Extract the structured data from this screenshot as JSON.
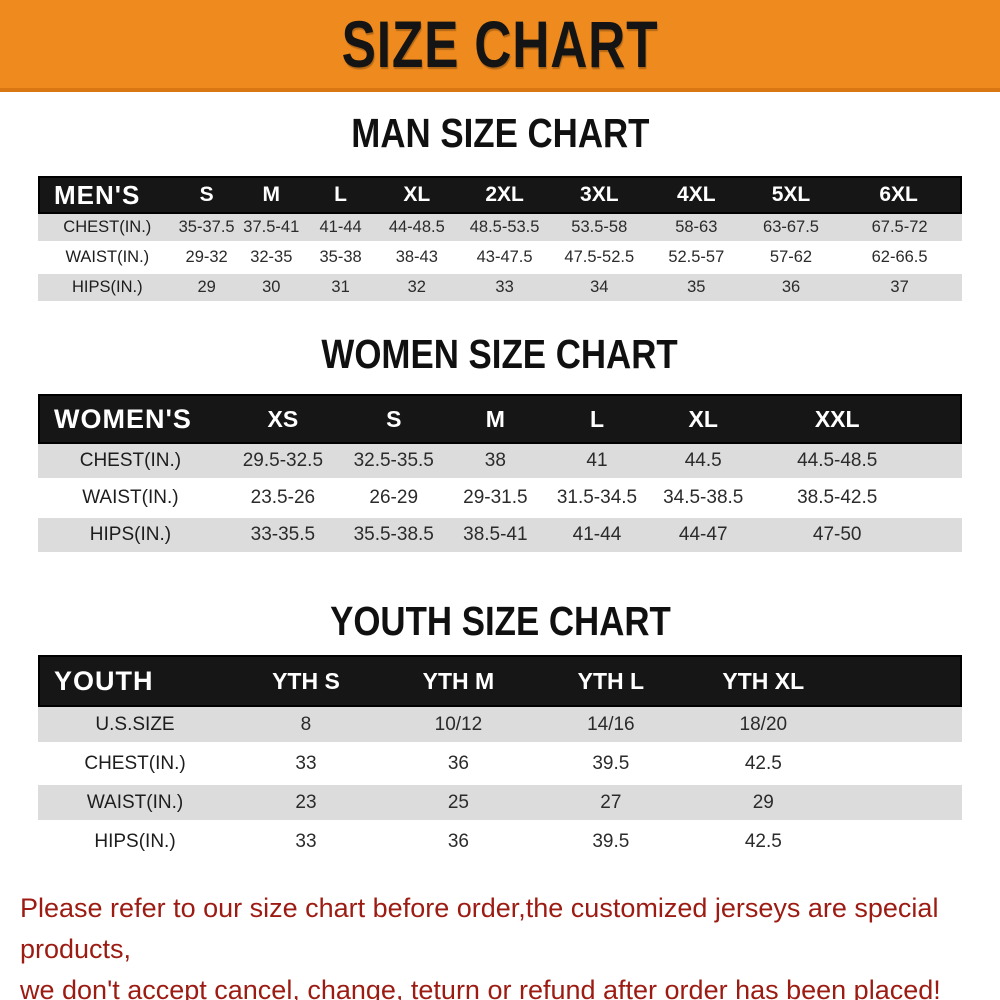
{
  "banner": {
    "title": "SIZE CHART"
  },
  "sections": [
    {
      "heading": "MAN SIZE CHART",
      "table": {
        "header": [
          "MEN'S",
          "S",
          "M",
          "L",
          "XL",
          "2XL",
          "3XL",
          "4XL",
          "5XL",
          "6XL"
        ],
        "rows": [
          {
            "label": "CHEST(IN.)",
            "values": [
              "35-37.5",
              "37.5-41",
              "41-44",
              "44-48.5",
              "48.5-53.5",
              "53.5-58",
              "58-63",
              "63-67.5",
              "67.5-72"
            ]
          },
          {
            "label": "WAIST(IN.)",
            "values": [
              "29-32",
              "32-35",
              "35-38",
              "38-43",
              "43-47.5",
              "47.5-52.5",
              "52.5-57",
              "57-62",
              "62-66.5"
            ]
          },
          {
            "label": "HIPS(IN.)",
            "values": [
              "29",
              "30",
              "31",
              "32",
              "33",
              "34",
              "35",
              "36",
              "37"
            ]
          }
        ]
      }
    },
    {
      "heading": "WOMEN SIZE CHART",
      "table": {
        "header": [
          "WOMEN'S",
          "XS",
          "S",
          "M",
          "L",
          "XL",
          "XXL"
        ],
        "rows": [
          {
            "label": "CHEST(IN.)",
            "values": [
              "29.5-32.5",
              "32.5-35.5",
              "38",
              "41",
              "44.5",
              "44.5-48.5"
            ]
          },
          {
            "label": "WAIST(IN.)",
            "values": [
              "23.5-26",
              "26-29",
              "29-31.5",
              "31.5-34.5",
              "34.5-38.5",
              "38.5-42.5"
            ]
          },
          {
            "label": "HIPS(IN.)",
            "values": [
              "33-35.5",
              "35.5-38.5",
              "38.5-41",
              "41-44",
              "44-47",
              "47-50"
            ]
          }
        ]
      }
    },
    {
      "heading": "YOUTH SIZE CHART",
      "table": {
        "header": [
          "YOUTH",
          "YTH S",
          "YTH M",
          "YTH L",
          "YTH XL"
        ],
        "rows": [
          {
            "label": "U.S.SIZE",
            "values": [
              "8",
              "10/12",
              "14/16",
              "18/20"
            ]
          },
          {
            "label": "CHEST(IN.)",
            "values": [
              "33",
              "36",
              "39.5",
              "42.5"
            ]
          },
          {
            "label": "WAIST(IN.)",
            "values": [
              "23",
              "25",
              "27",
              "29"
            ]
          },
          {
            "label": "HIPS(IN.)",
            "values": [
              "33",
              "36",
              "39.5",
              "42.5"
            ]
          }
        ]
      }
    }
  ],
  "footer": {
    "line1": "Please refer to our size chart before order,the customized jerseys are special products,",
    "line2": "we don't accept cancel, change, teturn or refund after order has been placed!"
  },
  "colors": {
    "banner_bg": "#ee8a1e",
    "banner_edge": "#d97712",
    "band_bg": "#161616",
    "row_alt": "#dcdcdc",
    "footer_color": "#9c1b12"
  }
}
